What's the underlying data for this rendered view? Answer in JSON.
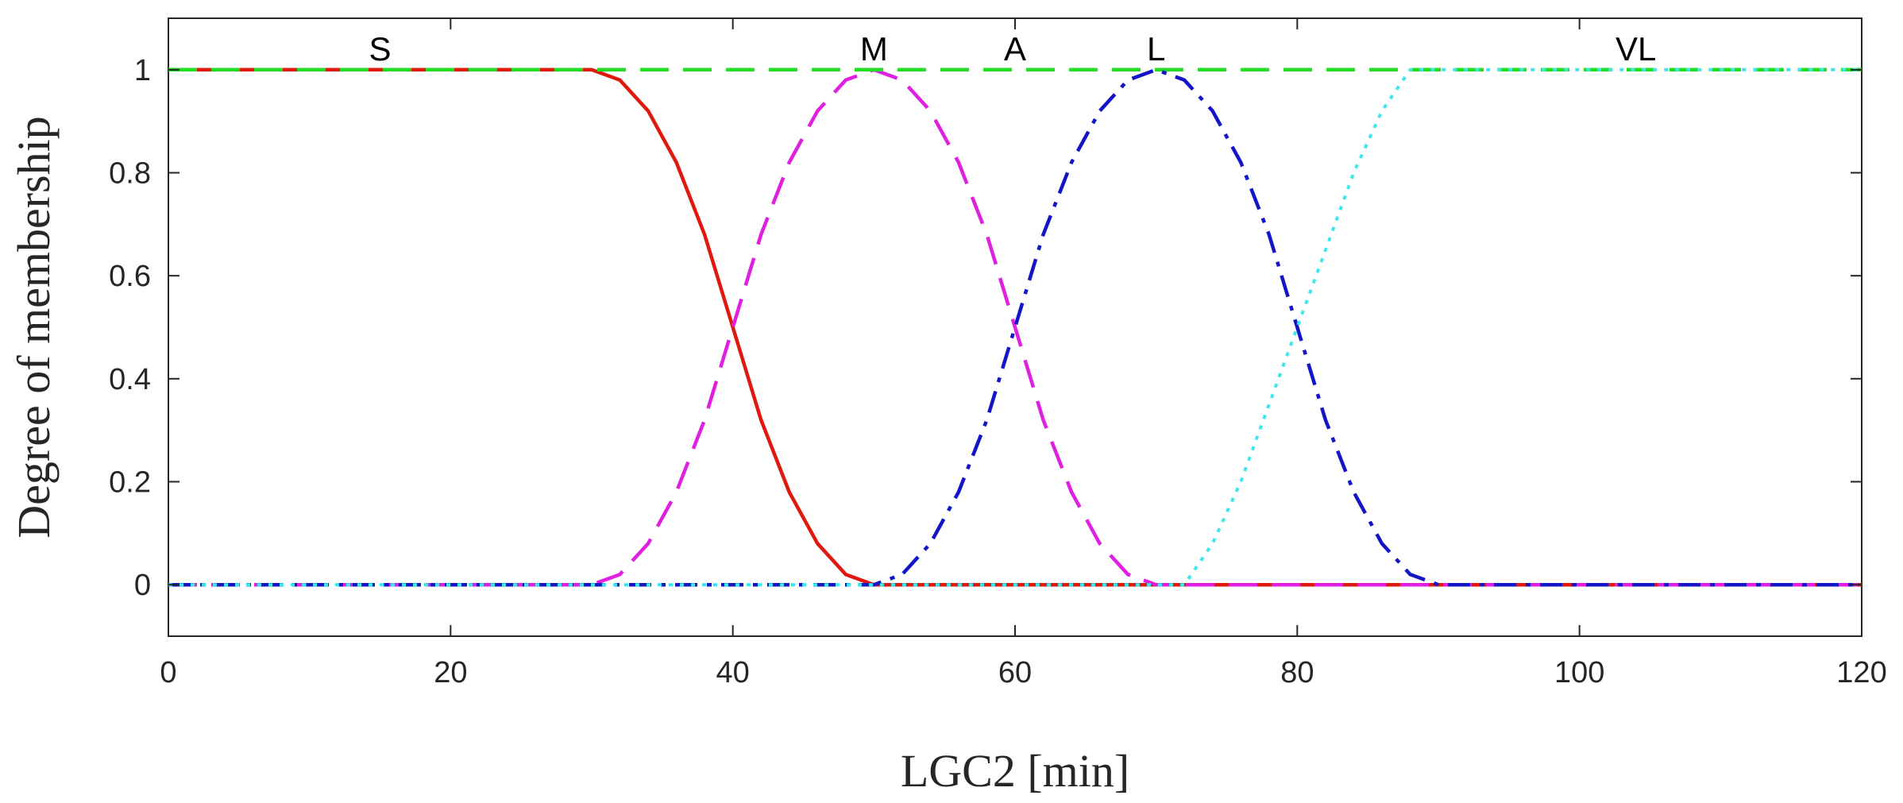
{
  "chart_data": {
    "type": "line",
    "title": "",
    "xlabel": "LGC2 [min]",
    "ylabel": "Degree of membership",
    "xlim": [
      0,
      120
    ],
    "ylim": [
      -0.1,
      1.1
    ],
    "xticks": [
      0,
      20,
      40,
      60,
      80,
      100,
      120
    ],
    "xtick_labels": [
      "0",
      "20",
      "40",
      "60",
      "80",
      "100",
      "120"
    ],
    "yticks": [
      0,
      0.2,
      0.4,
      0.6,
      0.8,
      1
    ],
    "ytick_labels": [
      "0",
      "0.2",
      "0.4",
      "0.6",
      "0.8",
      "1"
    ],
    "grid": false,
    "series": [
      {
        "name": "S",
        "label": "S",
        "label_at": [
          15,
          1.04
        ],
        "color": "#e0190f",
        "style": "solid",
        "x": [
          0,
          30,
          32,
          34,
          36,
          38,
          40,
          42,
          44,
          46,
          48,
          50,
          120
        ],
        "y": [
          1,
          1,
          0.98,
          0.92,
          0.82,
          0.68,
          0.5,
          0.32,
          0.18,
          0.08,
          0.02,
          0,
          0
        ]
      },
      {
        "name": "M",
        "label": "M",
        "label_at": [
          50,
          1.04
        ],
        "color": "#e020e0",
        "style": "dashed",
        "x": [
          0,
          30,
          32,
          34,
          36,
          38,
          40,
          42,
          44,
          46,
          48,
          50,
          52,
          54,
          56,
          58,
          60,
          62,
          64,
          66,
          68,
          70,
          120
        ],
        "y": [
          0,
          0,
          0.02,
          0.08,
          0.18,
          0.32,
          0.5,
          0.68,
          0.82,
          0.92,
          0.98,
          1,
          0.98,
          0.92,
          0.82,
          0.68,
          0.5,
          0.32,
          0.18,
          0.08,
          0.02,
          0,
          0
        ]
      },
      {
        "name": "A",
        "label": "A",
        "label_at": [
          60,
          1.04
        ],
        "color": "#22dd22",
        "style": "dashed",
        "x": [
          0,
          120
        ],
        "y": [
          1,
          1
        ]
      },
      {
        "name": "L",
        "label": "L",
        "label_at": [
          70,
          1.04
        ],
        "color": "#1515c8",
        "style": "dashdot",
        "x": [
          0,
          50,
          52,
          54,
          56,
          58,
          60,
          62,
          64,
          66,
          68,
          70,
          72,
          74,
          76,
          78,
          80,
          82,
          84,
          86,
          88,
          90,
          120
        ],
        "y": [
          0,
          0,
          0.02,
          0.08,
          0.18,
          0.32,
          0.5,
          0.68,
          0.82,
          0.92,
          0.98,
          1,
          0.98,
          0.92,
          0.82,
          0.68,
          0.5,
          0.32,
          0.18,
          0.08,
          0.02,
          0,
          0
        ]
      },
      {
        "name": "VL",
        "label": "VL",
        "label_at": [
          104,
          1.04
        ],
        "color": "#3ee6ee",
        "style": "dotted",
        "x": [
          0,
          72,
          74,
          76,
          78,
          80,
          82,
          84,
          86,
          88,
          120
        ],
        "y": [
          0,
          0,
          0.08,
          0.2,
          0.35,
          0.5,
          0.65,
          0.8,
          0.92,
          1,
          1
        ]
      }
    ]
  }
}
